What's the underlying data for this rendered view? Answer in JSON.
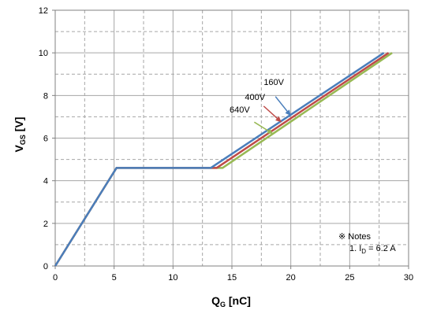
{
  "chart_data": {
    "type": "line",
    "title": "",
    "xlabel": {
      "main": "Q",
      "sub": "G",
      "unit": " [nC]"
    },
    "ylabel": {
      "main": "V",
      "sub": "GS",
      "unit": " [V]"
    },
    "xlim": [
      0,
      30
    ],
    "ylim": [
      0,
      12
    ],
    "x_ticks": [
      0,
      5,
      10,
      15,
      20,
      25,
      30
    ],
    "y_ticks": [
      0,
      2,
      4,
      6,
      8,
      10,
      12
    ],
    "grid": true,
    "series": [
      {
        "name": "160V",
        "color": "#4a7ebb",
        "x": [
          0,
          5.2,
          13.2,
          27.9
        ],
        "y": [
          0,
          4.6,
          4.6,
          10
        ]
      },
      {
        "name": "400V",
        "color": "#be4b48",
        "x": [
          0,
          5.2,
          13.7,
          28.3
        ],
        "y": [
          0,
          4.6,
          4.6,
          10
        ]
      },
      {
        "name": "640V",
        "color": "#98b954",
        "x": [
          0,
          5.2,
          14.2,
          28.6
        ],
        "y": [
          0,
          4.6,
          4.6,
          10
        ]
      }
    ],
    "annotations": [
      {
        "series": 0,
        "text": "160V",
        "text_at": [
          17.7,
          8.5
        ],
        "arrow_from": [
          18.7,
          7.95
        ],
        "arrow_to": [
          20.0,
          7.05
        ]
      },
      {
        "series": 1,
        "text": "400V",
        "text_at": [
          16.1,
          7.8
        ],
        "arrow_from": [
          17.7,
          7.5
        ],
        "arrow_to": [
          19.2,
          6.75
        ]
      },
      {
        "series": 2,
        "text": "640V",
        "text_at": [
          14.8,
          7.2
        ],
        "arrow_from": [
          16.9,
          6.75
        ],
        "arrow_to": [
          18.5,
          6.2
        ]
      }
    ],
    "notes": {
      "heading": "※ Notes",
      "line_prefix": "1. I",
      "line_sub": "D",
      "line_suffix": " = 6.2 A"
    }
  }
}
